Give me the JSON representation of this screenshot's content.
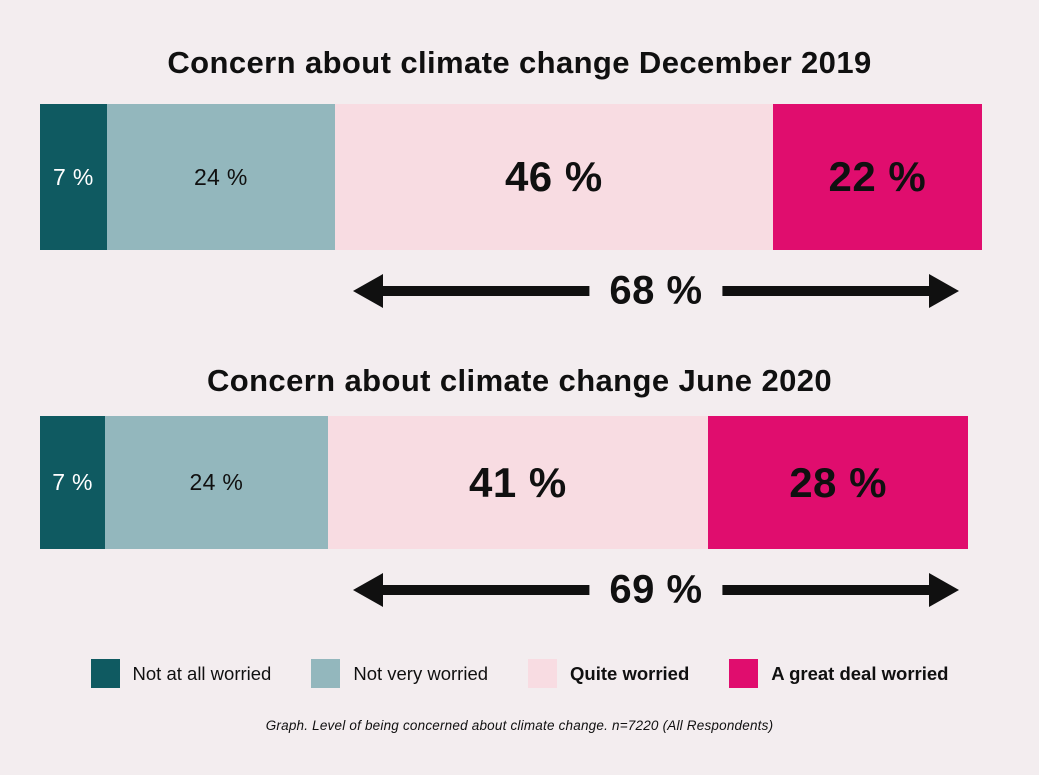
{
  "page": {
    "background": "#f3edef",
    "caption": "Graph. Level of being concerned about climate change. n=7220 (All Respondents)"
  },
  "colors": {
    "text": "#101010",
    "arrow": "#101010",
    "not_at_all_worried": "#0f5a61",
    "not_very_worried": "#93b7bd",
    "quite_worried": "#f8dce2",
    "a_great_deal_worried": "#e00d6e"
  },
  "chart_data": [
    {
      "type": "bar",
      "orientation": "horizontal",
      "stacked": true,
      "title": "Concern about climate change December 2019",
      "categories": [
        "Not at all worried",
        "Not very worried",
        "Quite worried",
        "A great deal worried"
      ],
      "values": [
        7,
        24,
        46,
        22
      ],
      "labels": [
        "7 %",
        "24 %",
        "46 %",
        "22 %"
      ],
      "combined": {
        "label": "68 %",
        "value": 68,
        "covers": [
          "Quite worried",
          "A great deal worried"
        ]
      }
    },
    {
      "type": "bar",
      "orientation": "horizontal",
      "stacked": true,
      "title": "Concern about climate change June 2020",
      "categories": [
        "Not at all worried",
        "Not very worried",
        "Quite worried",
        "A great deal worried"
      ],
      "values": [
        7,
        24,
        41,
        28
      ],
      "labels": [
        "7 %",
        "24 %",
        "41 %",
        "28 %"
      ],
      "combined": {
        "label": "69 %",
        "value": 69,
        "covers": [
          "Quite worried",
          "A great deal worried"
        ]
      }
    }
  ],
  "legend": [
    {
      "label": "Not at all worried",
      "color": "#0f5a61",
      "bold": false
    },
    {
      "label": "Not very worried",
      "color": "#93b7bd",
      "bold": false
    },
    {
      "label": "Quite worried",
      "color": "#f8dce2",
      "bold": true
    },
    {
      "label": "A great deal worried",
      "color": "#e00d6e",
      "bold": true
    }
  ]
}
